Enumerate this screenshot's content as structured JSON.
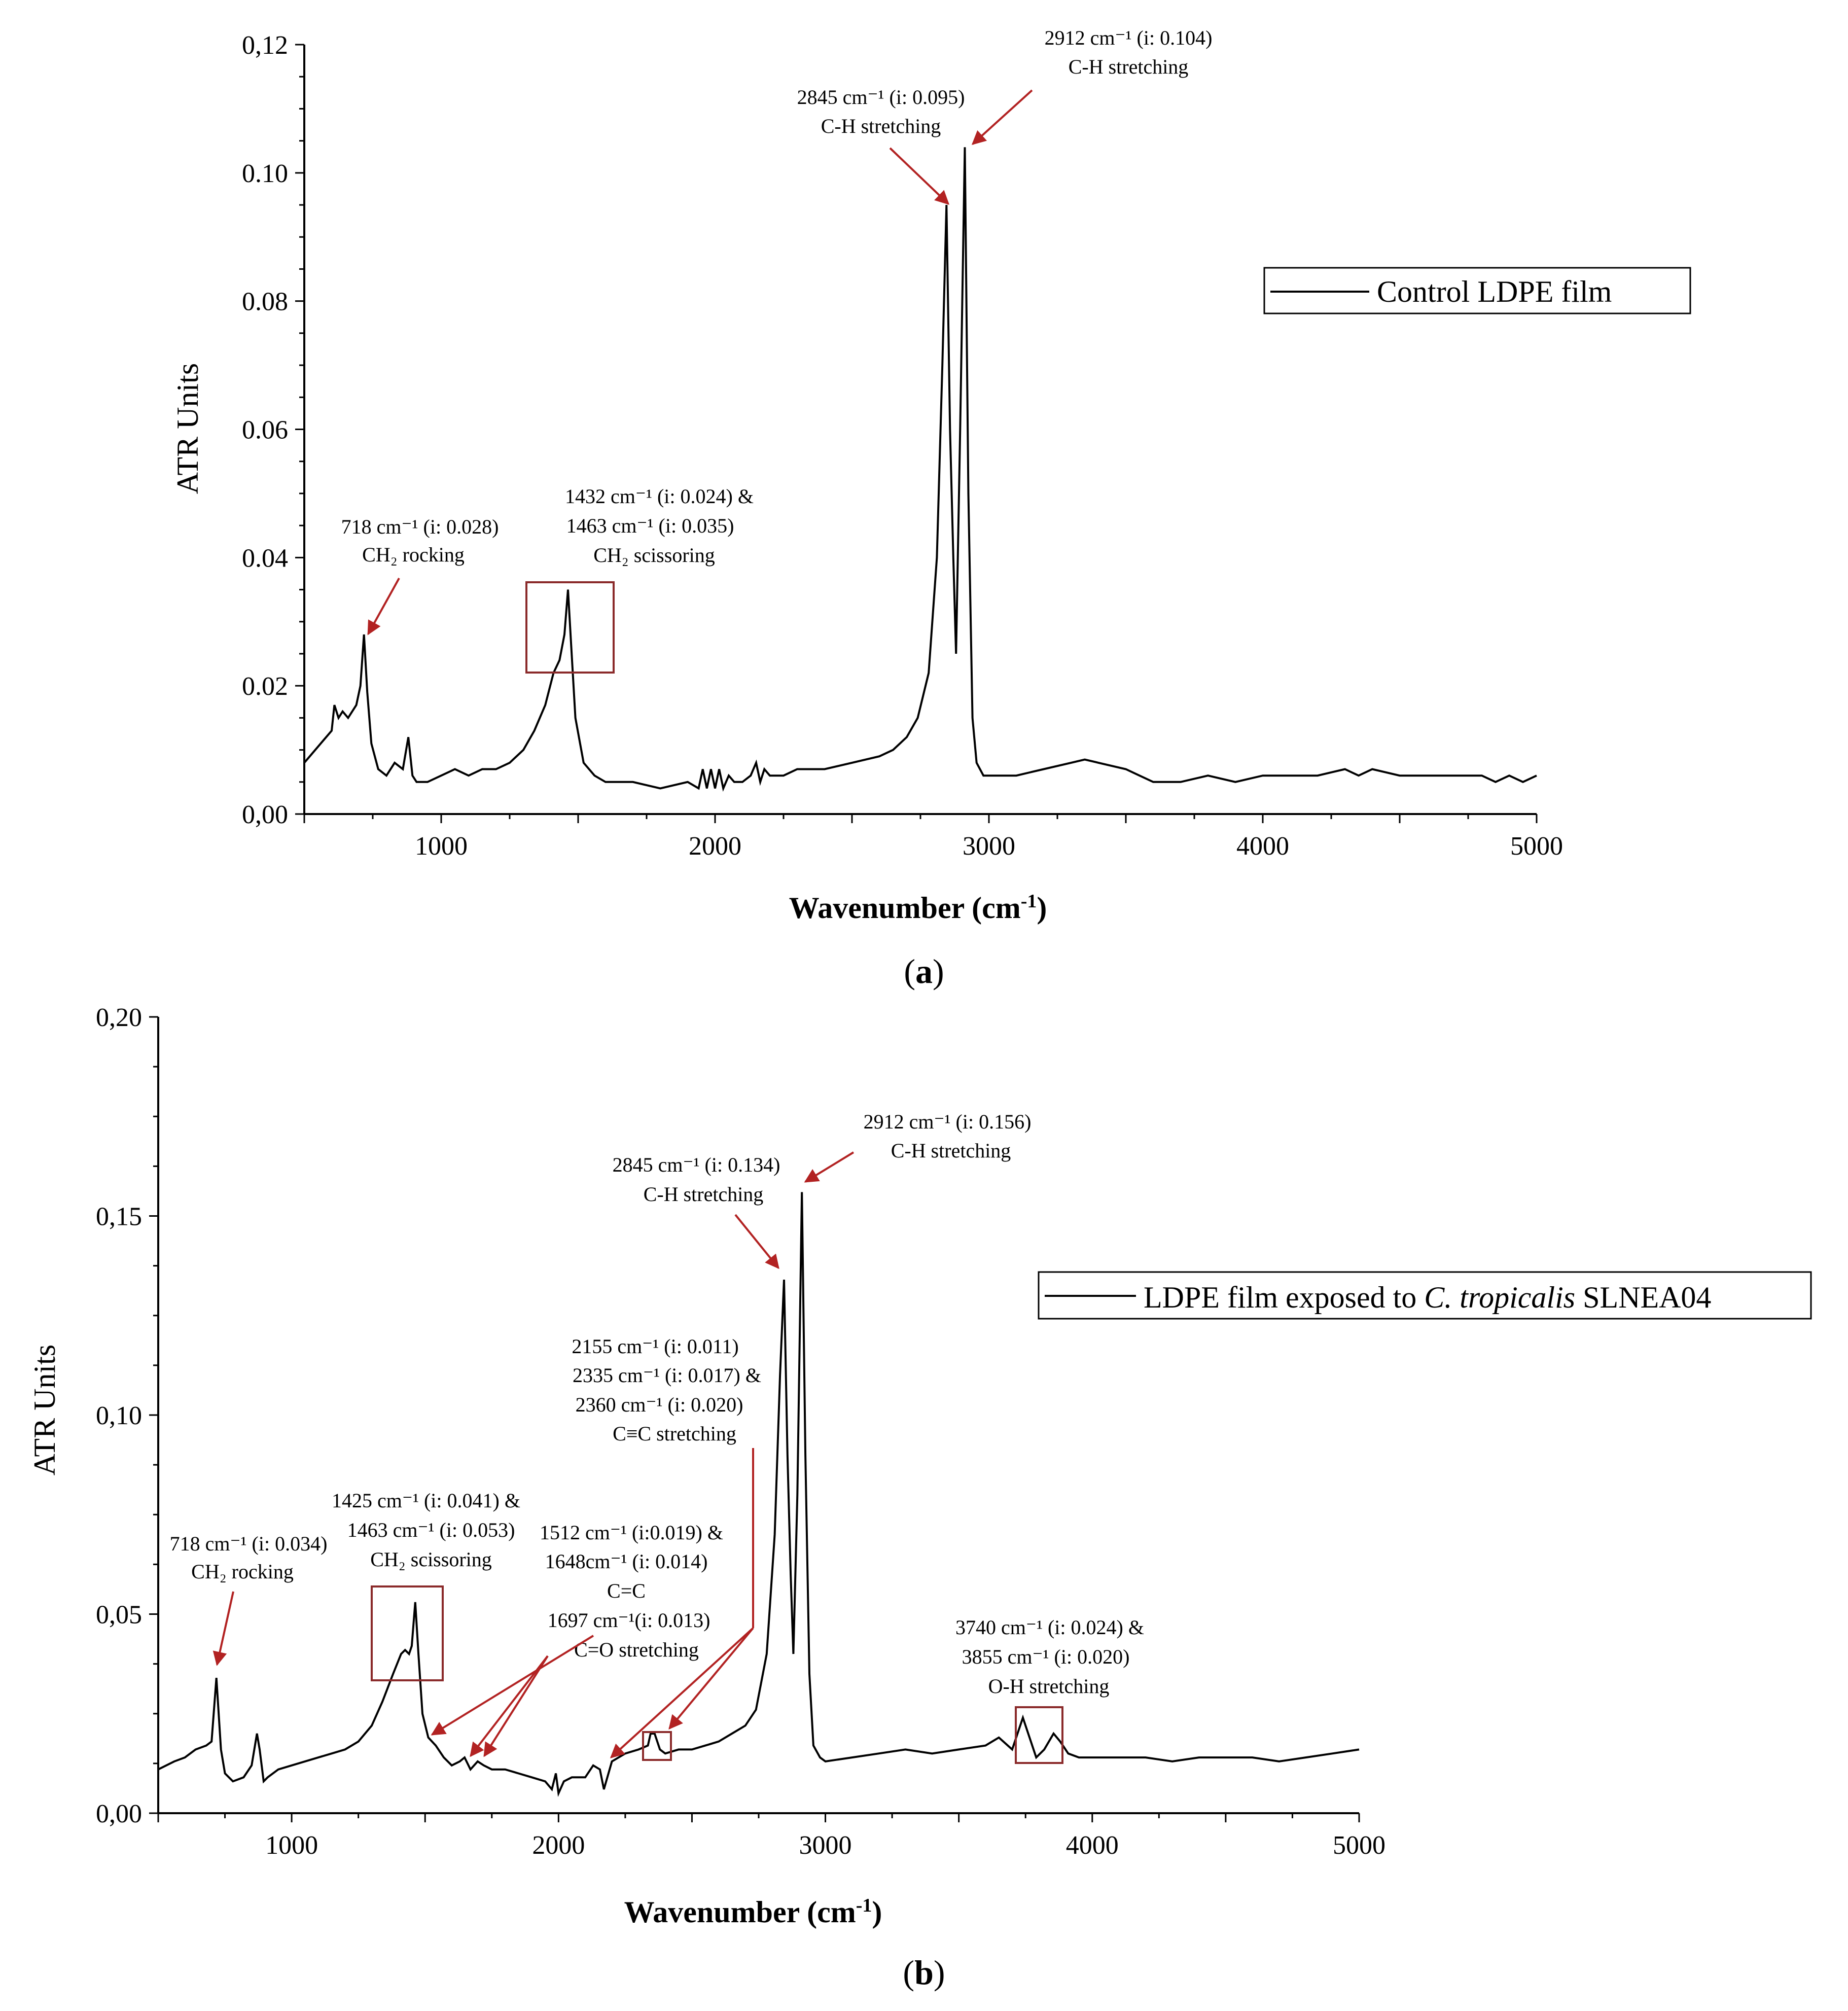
{
  "colors": {
    "series": "#000000",
    "annotation": "#b22222",
    "box": "#8b2b2b",
    "axis": "#000000"
  },
  "charts": [
    {
      "id": "a",
      "caption": "a",
      "title": "",
      "xlabel": "Wavenumber (cm",
      "xlabel_sup": "-1",
      "xlabel_end": ")",
      "ylabel": "ATR Units",
      "legend": [
        "Control LDPE film"
      ],
      "x_ticks": [
        "1000",
        "2000",
        "3000",
        "4000",
        "5000"
      ],
      "y_ticks": [
        "0,00",
        "0.02",
        "0.04",
        "0.06",
        "0.08",
        "0.10",
        "0,12"
      ],
      "annotations": [
        {
          "lines": [
            "718 cm⁻¹ (i: 0.028)",
            "CH₂ rocking"
          ]
        },
        {
          "lines": [
            "1432 cm⁻¹ (i: 0.024) &",
            "1463 cm⁻¹ (i: 0.035)",
            "CH₂ scissoring"
          ]
        },
        {
          "lines": [
            "2845 cm⁻¹ (i: 0.095)",
            "C-H stretching"
          ]
        },
        {
          "lines": [
            "2912 cm⁻¹ (i: 0.104)",
            "C-H stretching"
          ]
        }
      ]
    },
    {
      "id": "b",
      "caption": "b",
      "title": "",
      "xlabel": "Wavenumber (cm",
      "xlabel_sup": "-1",
      "xlabel_end": ")",
      "ylabel": "ATR Units",
      "legend": [
        "LDPE film exposed to ",
        "C. tropicalis",
        " SLNEA04"
      ],
      "x_ticks": [
        "1000",
        "2000",
        "3000",
        "4000",
        "5000"
      ],
      "y_ticks": [
        "0,00",
        "0,05",
        "0,10",
        "0,15",
        "0,20"
      ],
      "annotations": [
        {
          "lines": [
            "718 cm⁻¹ (i: 0.034)",
            "CH₂ rocking"
          ]
        },
        {
          "lines": [
            "1425 cm⁻¹ (i: 0.041) &",
            "1463 cm⁻¹ (i: 0.053)",
            "CH₂ scissoring"
          ]
        },
        {
          "lines": [
            "1512 cm⁻¹ (i:0.019) &",
            "1648cm⁻¹ (i: 0.014)",
            "C=C",
            "1697 cm⁻¹(i: 0.013)",
            "C=O stretching"
          ]
        },
        {
          "lines": [
            "2155 cm⁻¹ (i: 0.011)",
            "2335 cm⁻¹ (i: 0.017) &",
            "2360 cm⁻¹ (i: 0.020)",
            "C≡C stretching"
          ]
        },
        {
          "lines": [
            "2845 cm⁻¹ (i: 0.134)",
            "C-H stretching"
          ]
        },
        {
          "lines": [
            "2912 cm⁻¹ (i: 0.156)",
            "C-H stretching"
          ]
        },
        {
          "lines": [
            "3740 cm⁻¹ (i: 0.024) &",
            "3855 cm⁻¹ (i: 0.020)",
            "O-H stretching"
          ]
        }
      ]
    }
  ],
  "chart_data": [
    {
      "type": "line",
      "title": "",
      "xlabel": "Wavenumber (cm-1)",
      "ylabel": "ATR Units",
      "xlim": [
        500,
        5000
      ],
      "ylim": [
        0,
        0.12
      ],
      "grid": false,
      "legend_position": "top-right",
      "series": [
        {
          "name": "Control LDPE film",
          "x": [
            500,
            560,
            600,
            610,
            625,
            640,
            660,
            690,
            705,
            718,
            730,
            745,
            770,
            800,
            830,
            860,
            880,
            895,
            910,
            950,
            1000,
            1050,
            1100,
            1150,
            1200,
            1250,
            1300,
            1340,
            1380,
            1410,
            1432,
            1450,
            1463,
            1475,
            1490,
            1520,
            1560,
            1600,
            1650,
            1700,
            1800,
            1900,
            1940,
            1955,
            1970,
            1985,
            2000,
            2015,
            2030,
            2050,
            2070,
            2100,
            2130,
            2150,
            2165,
            2180,
            2200,
            2250,
            2300,
            2400,
            2500,
            2600,
            2650,
            2700,
            2740,
            2780,
            2810,
            2830,
            2845,
            2858,
            2870,
            2880,
            2895,
            2912,
            2925,
            2940,
            2955,
            2980,
            3000,
            3100,
            3200,
            3300,
            3350,
            3400,
            3500,
            3550,
            3600,
            3700,
            3800,
            3900,
            4000,
            4100,
            4200,
            4300,
            4350,
            4400,
            4500,
            4600,
            4700,
            4800,
            4850,
            4900,
            4950,
            5000
          ],
          "y": [
            0.008,
            0.011,
            0.013,
            0.017,
            0.015,
            0.016,
            0.015,
            0.017,
            0.02,
            0.028,
            0.019,
            0.011,
            0.007,
            0.006,
            0.008,
            0.007,
            0.012,
            0.006,
            0.005,
            0.005,
            0.006,
            0.007,
            0.006,
            0.007,
            0.007,
            0.008,
            0.01,
            0.013,
            0.017,
            0.022,
            0.024,
            0.028,
            0.035,
            0.026,
            0.015,
            0.008,
            0.006,
            0.005,
            0.005,
            0.005,
            0.004,
            0.005,
            0.004,
            0.007,
            0.004,
            0.007,
            0.004,
            0.007,
            0.004,
            0.006,
            0.005,
            0.005,
            0.006,
            0.008,
            0.005,
            0.007,
            0.006,
            0.006,
            0.007,
            0.007,
            0.008,
            0.009,
            0.01,
            0.012,
            0.015,
            0.022,
            0.04,
            0.07,
            0.095,
            0.06,
            0.04,
            0.025,
            0.06,
            0.104,
            0.05,
            0.015,
            0.008,
            0.006,
            0.006,
            0.006,
            0.007,
            0.008,
            0.0085,
            0.008,
            0.007,
            0.006,
            0.005,
            0.005,
            0.006,
            0.005,
            0.006,
            0.006,
            0.006,
            0.007,
            0.006,
            0.007,
            0.006,
            0.006,
            0.006,
            0.006,
            0.005,
            0.006,
            0.005,
            0.006
          ]
        }
      ]
    },
    {
      "type": "line",
      "title": "",
      "xlabel": "Wavenumber (cm-1)",
      "ylabel": "ATR Units",
      "xlim": [
        500,
        5000
      ],
      "ylim": [
        0,
        0.2
      ],
      "grid": false,
      "legend_position": "top-right",
      "series": [
        {
          "name": "LDPE film exposed to C. tropicalis SLNEA04",
          "x": [
            500,
            560,
            600,
            640,
            680,
            700,
            718,
            735,
            750,
            780,
            820,
            850,
            870,
            880,
            895,
            910,
            950,
            1000,
            1050,
            1100,
            1150,
            1200,
            1250,
            1300,
            1340,
            1380,
            1410,
            1425,
            1440,
            1450,
            1463,
            1475,
            1490,
            1512,
            1540,
            1570,
            1600,
            1630,
            1648,
            1670,
            1697,
            1720,
            1750,
            1800,
            1850,
            1900,
            1950,
            1975,
            1990,
            2000,
            2020,
            2050,
            2100,
            2130,
            2155,
            2170,
            2200,
            2250,
            2300,
            2335,
            2345,
            2360,
            2380,
            2400,
            2450,
            2500,
            2550,
            2600,
            2650,
            2700,
            2740,
            2780,
            2810,
            2830,
            2845,
            2858,
            2870,
            2880,
            2895,
            2912,
            2925,
            2940,
            2955,
            2980,
            3000,
            3100,
            3200,
            3300,
            3400,
            3500,
            3600,
            3650,
            3700,
            3720,
            3740,
            3760,
            3790,
            3820,
            3855,
            3880,
            3910,
            3950,
            4000,
            4100,
            4200,
            4300,
            4400,
            4500,
            4600,
            4700,
            4800,
            4900,
            5000
          ],
          "y": [
            0.011,
            0.013,
            0.014,
            0.016,
            0.017,
            0.018,
            0.034,
            0.016,
            0.01,
            0.008,
            0.009,
            0.012,
            0.02,
            0.016,
            0.008,
            0.009,
            0.011,
            0.012,
            0.013,
            0.014,
            0.015,
            0.016,
            0.018,
            0.022,
            0.028,
            0.035,
            0.04,
            0.041,
            0.04,
            0.042,
            0.053,
            0.04,
            0.025,
            0.019,
            0.017,
            0.014,
            0.012,
            0.013,
            0.014,
            0.011,
            0.013,
            0.012,
            0.011,
            0.011,
            0.01,
            0.009,
            0.008,
            0.006,
            0.01,
            0.005,
            0.008,
            0.009,
            0.009,
            0.012,
            0.011,
            0.006,
            0.013,
            0.015,
            0.016,
            0.017,
            0.02,
            0.02,
            0.016,
            0.015,
            0.016,
            0.016,
            0.017,
            0.018,
            0.02,
            0.022,
            0.026,
            0.04,
            0.07,
            0.11,
            0.134,
            0.09,
            0.06,
            0.04,
            0.08,
            0.156,
            0.09,
            0.035,
            0.017,
            0.014,
            0.013,
            0.014,
            0.015,
            0.016,
            0.015,
            0.016,
            0.017,
            0.019,
            0.016,
            0.02,
            0.024,
            0.02,
            0.014,
            0.016,
            0.02,
            0.018,
            0.015,
            0.014,
            0.014,
            0.014,
            0.014,
            0.013,
            0.014,
            0.014,
            0.014,
            0.013,
            0.014,
            0.015,
            0.016
          ]
        }
      ]
    }
  ]
}
